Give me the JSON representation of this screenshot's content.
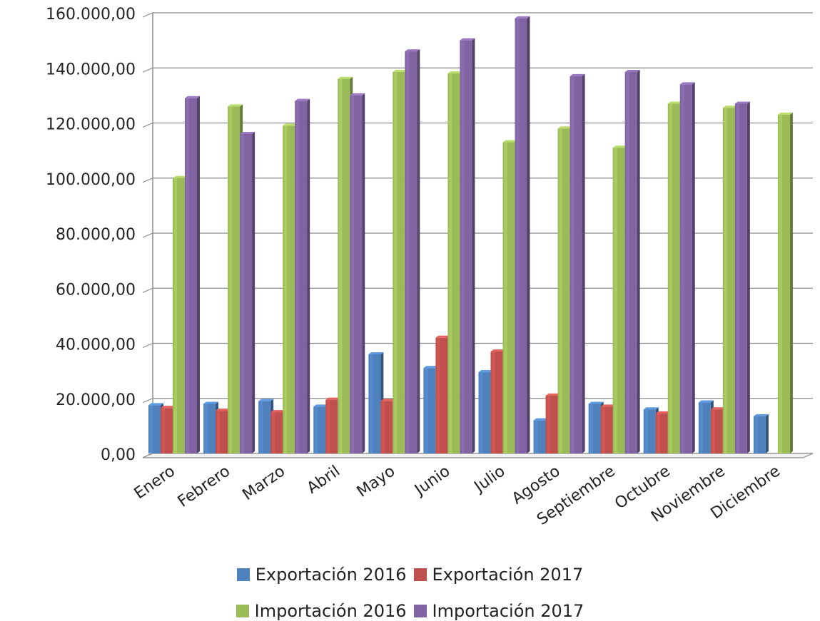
{
  "chart_data": {
    "type": "bar",
    "title": "",
    "xlabel": "",
    "ylabel": "",
    "ylim": [
      0,
      160000
    ],
    "yticks": [
      "0,00",
      "20.000,00",
      "40.000,00",
      "60.000,00",
      "80.000,00",
      "100.000,00",
      "120.000,00",
      "140.000,00",
      "160.000,00"
    ],
    "grid": true,
    "legend_position": "bottom",
    "categories": [
      "Enero",
      "Febrero",
      "Marzo",
      "Abril",
      "Mayo",
      "Junio",
      "Julio",
      "Agosto",
      "Septiembre",
      "Octubre",
      "Noviembre",
      "Diciembre"
    ],
    "series": [
      {
        "name": "Exportación 2016",
        "color": "#4F81BD",
        "values": [
          17500,
          18000,
          19000,
          17000,
          36000,
          31000,
          29500,
          12000,
          18000,
          16000,
          18500,
          13500
        ]
      },
      {
        "name": "Exportación 2017",
        "color": "#C0504D",
        "values": [
          16500,
          15500,
          15000,
          19500,
          19000,
          42000,
          37000,
          21000,
          17000,
          14500,
          16000,
          null
        ]
      },
      {
        "name": "Importación 2016",
        "color": "#9BBB59",
        "values": [
          100000,
          126000,
          119000,
          136000,
          138500,
          138000,
          113000,
          118000,
          111000,
          127000,
          125500,
          123000
        ]
      },
      {
        "name": "Importación 2017",
        "color": "#8064A2",
        "values": [
          129000,
          116000,
          128000,
          130000,
          146000,
          150000,
          158000,
          137000,
          138500,
          134000,
          127000,
          null
        ]
      }
    ]
  }
}
